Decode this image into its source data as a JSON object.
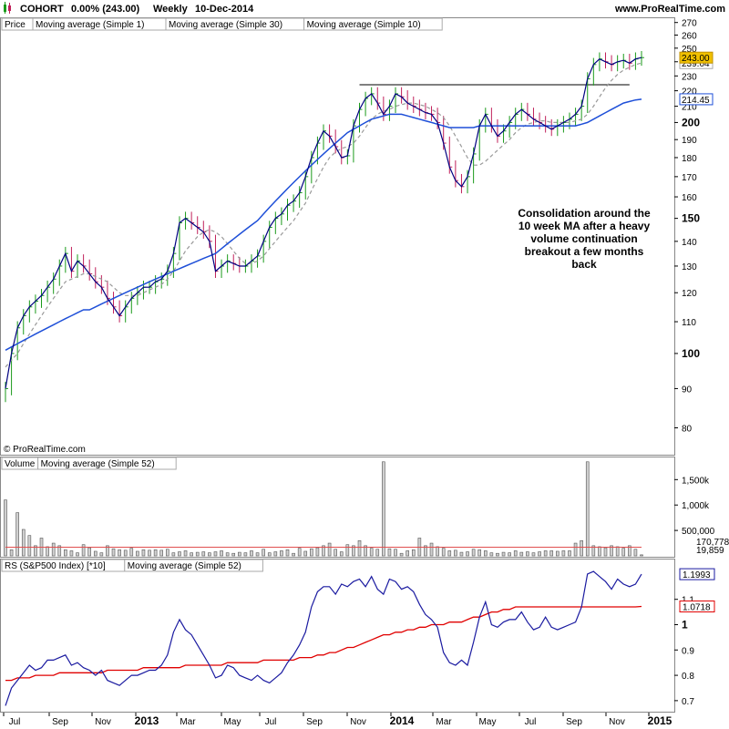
{
  "header": {
    "symbol": "COHORT",
    "change": "0.00% (243.00)",
    "period": "Weekly",
    "date": "10-Dec-2014",
    "site": "www.ProRealTime.com",
    "watermark": "© ProRealTime.com"
  },
  "legends": {
    "price": [
      {
        "text": "Price",
        "color": "#000000"
      },
      {
        "text": "Moving average (Simple 1)",
        "color": "#000080"
      },
      {
        "text": "Moving average (Simple 30)",
        "color": "#1e4fd8"
      },
      {
        "text": "Moving average (Simple 10)",
        "color": "#999999"
      }
    ],
    "volume": [
      {
        "text": "Volume",
        "color": "#888888"
      },
      {
        "text": "Moving average (Simple 52)",
        "color": "#e05050"
      }
    ],
    "rs": [
      {
        "text": "RS (S&P500 Index) [*10]",
        "color": "#000080"
      },
      {
        "text": "Moving average (Simple 52)",
        "color": "#e00000"
      }
    ]
  },
  "colors": {
    "up_bar": "#1a9a1a",
    "down_bar": "#c0205a",
    "ma1": "#000080",
    "ma30": "#1e4fd8",
    "ma10": "#999999",
    "vol_bar": "#888888",
    "vol_ma": "#e05050",
    "rs_line": "#1a1aa0",
    "rs_ma": "#e00000",
    "price_tag": "#f0c000"
  },
  "annotation": {
    "lines": [
      "Consolidation around the",
      "10 week MA after a heavy",
      "volume continuation",
      "breakout a few months",
      "back"
    ]
  },
  "chart_data": [
    {
      "type": "line",
      "panel": "price",
      "y_scale": "log",
      "ylim": [
        74,
        272
      ],
      "y_ticks": [
        80,
        90,
        100,
        110,
        120,
        130,
        140,
        150,
        160,
        170,
        180,
        190,
        200,
        210,
        220,
        230,
        240,
        250,
        260,
        270
      ],
      "y_ticks_bold": [
        100,
        150,
        200
      ],
      "x_ticks": [
        "Jul",
        "Sep",
        "Nov",
        "2013",
        "Mar",
        "May",
        "Jul",
        "Sep",
        "Nov",
        "2014",
        "Mar",
        "May",
        "Jul",
        "Sep",
        "Nov",
        "2015"
      ],
      "x_ticks_bold": [
        "2013",
        "2014",
        "2015"
      ],
      "series": [
        {
          "name": "Moving average (Simple 1)",
          "values": [
            90,
            100,
            108,
            112,
            115,
            117,
            119,
            122,
            125,
            130,
            135,
            128,
            132,
            130,
            127,
            124,
            122,
            118,
            115,
            112,
            115,
            118,
            120,
            122,
            122,
            124,
            125,
            128,
            135,
            148,
            150,
            148,
            146,
            144,
            140,
            128,
            130,
            132,
            131,
            130,
            130,
            132,
            134,
            140,
            146,
            150,
            152,
            156,
            158,
            162,
            170,
            180,
            188,
            195,
            192,
            186,
            180,
            181,
            198,
            208,
            215,
            218,
            212,
            205,
            210,
            218,
            216,
            212,
            210,
            208,
            206,
            205,
            200,
            188,
            175,
            168,
            165,
            170,
            182,
            198,
            205,
            198,
            192,
            195,
            200,
            205,
            208,
            205,
            202,
            200,
            198,
            196,
            198,
            200,
            202,
            205,
            210,
            228,
            238,
            242,
            240,
            238,
            240,
            241,
            239,
            242,
            243
          ]
        },
        {
          "name": "Moving average (Simple 30)",
          "values": [
            101,
            102,
            103,
            104,
            105,
            106,
            107,
            108,
            109,
            110,
            111,
            112,
            113,
            114,
            114,
            115,
            116,
            117,
            118,
            119,
            120,
            121,
            122,
            123,
            124,
            125,
            126,
            127,
            128,
            129,
            130,
            131,
            132,
            133,
            134,
            135,
            137,
            139,
            141,
            143,
            145,
            147,
            149,
            152,
            155,
            158,
            161,
            164,
            167,
            170,
            173,
            176,
            179,
            182,
            185,
            188,
            191,
            194,
            196,
            198,
            200,
            202,
            203,
            204,
            205,
            205,
            205,
            204,
            203,
            202,
            201,
            200,
            199,
            198,
            197,
            197,
            197,
            197,
            197,
            198,
            198,
            198,
            198,
            198,
            198,
            198,
            198,
            198,
            198,
            198,
            198,
            198,
            198,
            198,
            198,
            198,
            199,
            200,
            202,
            204,
            206,
            208,
            210,
            212,
            213,
            214,
            214.45
          ]
        },
        {
          "name": "Moving average (Simple 10)",
          "values": [
            96,
            98,
            100,
            103,
            106,
            109,
            112,
            115,
            118,
            121,
            124,
            125,
            126,
            127,
            127,
            126,
            125,
            124,
            122,
            120,
            119,
            119,
            119,
            120,
            121,
            122,
            123,
            125,
            128,
            132,
            136,
            139,
            142,
            144,
            145,
            144,
            142,
            139,
            136,
            133,
            131,
            131,
            132,
            134,
            137,
            140,
            143,
            146,
            149,
            153,
            157,
            163,
            169,
            175,
            180,
            183,
            185,
            186,
            188,
            192,
            197,
            202,
            205,
            207,
            208,
            210,
            211,
            212,
            212,
            211,
            210,
            208,
            206,
            203,
            198,
            192,
            186,
            180,
            176,
            176,
            178,
            181,
            184,
            187,
            190,
            194,
            197,
            199,
            200,
            201,
            201,
            200,
            200,
            200,
            200,
            201,
            202,
            205,
            210,
            216,
            222,
            227,
            231,
            234,
            236,
            238,
            239.04
          ]
        }
      ],
      "last_price": "243.00",
      "ma10_last": "239.04",
      "ma30_last": "214.45",
      "resistance_level": 224
    },
    {
      "type": "bar",
      "panel": "volume",
      "ylim": [
        0,
        1900000
      ],
      "y_tick_labels": [
        "1,500k",
        "1,000k",
        "500,000"
      ],
      "y_tick_values": [
        1500000,
        1000000,
        500000
      ],
      "values": [
        1100000,
        120000,
        850000,
        520000,
        400000,
        200000,
        350000,
        180000,
        250000,
        200000,
        120000,
        100000,
        60000,
        220000,
        160000,
        90000,
        60000,
        200000,
        140000,
        120000,
        110000,
        150000,
        90000,
        120000,
        110000,
        120000,
        110000,
        130000,
        60000,
        80000,
        100000,
        60000,
        70000,
        80000,
        60000,
        80000,
        100000,
        60000,
        50000,
        70000,
        60000,
        100000,
        60000,
        130000,
        60000,
        80000,
        100000,
        120000,
        50000,
        150000,
        90000,
        140000,
        160000,
        200000,
        250000,
        130000,
        80000,
        220000,
        200000,
        300000,
        200000,
        150000,
        130000,
        1850000,
        140000,
        130000,
        50000,
        100000,
        120000,
        350000,
        200000,
        250000,
        180000,
        150000,
        100000,
        110000,
        70000,
        80000,
        130000,
        120000,
        100000,
        60000,
        50000,
        70000,
        60000,
        100000,
        70000,
        80000,
        60000,
        80000,
        100000,
        100000,
        90000,
        100000,
        100000,
        250000,
        300000,
        1850000,
        200000,
        180000,
        160000,
        200000,
        180000,
        150000,
        200000,
        130000,
        19859
      ],
      "ma_values_last": "170,778",
      "volume_last": "19,859",
      "ma_level": 170778
    },
    {
      "type": "line",
      "panel": "rs",
      "ylim": [
        0.66,
        1.25
      ],
      "y_ticks": [
        0.7,
        0.8,
        0.9,
        1,
        1.1
      ],
      "y_tick_labels": [
        "0.7",
        "0.8",
        "0.9",
        "1",
        "1.1"
      ],
      "series": [
        {
          "name": "RS (S&P500 Index) [*10]",
          "values": [
            0.68,
            0.75,
            0.78,
            0.81,
            0.84,
            0.82,
            0.83,
            0.86,
            0.86,
            0.87,
            0.88,
            0.84,
            0.85,
            0.83,
            0.82,
            0.8,
            0.82,
            0.78,
            0.77,
            0.76,
            0.78,
            0.8,
            0.8,
            0.81,
            0.82,
            0.82,
            0.84,
            0.88,
            0.97,
            1.02,
            0.98,
            0.96,
            0.92,
            0.88,
            0.84,
            0.79,
            0.8,
            0.84,
            0.83,
            0.8,
            0.79,
            0.78,
            0.8,
            0.78,
            0.77,
            0.79,
            0.81,
            0.85,
            0.88,
            0.92,
            0.97,
            1.07,
            1.13,
            1.15,
            1.15,
            1.12,
            1.16,
            1.15,
            1.17,
            1.18,
            1.15,
            1.19,
            1.14,
            1.12,
            1.18,
            1.17,
            1.14,
            1.15,
            1.13,
            1.08,
            1.04,
            1.02,
            0.99,
            0.89,
            0.85,
            0.84,
            0.86,
            0.84,
            0.93,
            1.03,
            1.09,
            1.0,
            0.99,
            1.01,
            1.02,
            1.02,
            1.05,
            1.01,
            0.98,
            0.99,
            1.03,
            0.99,
            0.98,
            0.99,
            1.0,
            1.01,
            1.07,
            1.2,
            1.21,
            1.19,
            1.17,
            1.14,
            1.18,
            1.16,
            1.15,
            1.16,
            1.1993
          ]
        },
        {
          "name": "Moving average (Simple 52)",
          "values": [
            0.78,
            0.78,
            0.79,
            0.79,
            0.79,
            0.8,
            0.8,
            0.8,
            0.8,
            0.81,
            0.81,
            0.81,
            0.81,
            0.81,
            0.81,
            0.81,
            0.81,
            0.82,
            0.82,
            0.82,
            0.82,
            0.82,
            0.82,
            0.83,
            0.83,
            0.83,
            0.83,
            0.83,
            0.83,
            0.83,
            0.84,
            0.84,
            0.84,
            0.84,
            0.84,
            0.84,
            0.84,
            0.85,
            0.85,
            0.85,
            0.85,
            0.85,
            0.85,
            0.86,
            0.86,
            0.86,
            0.86,
            0.86,
            0.86,
            0.87,
            0.87,
            0.87,
            0.88,
            0.88,
            0.89,
            0.89,
            0.9,
            0.91,
            0.91,
            0.92,
            0.93,
            0.94,
            0.95,
            0.96,
            0.96,
            0.97,
            0.97,
            0.98,
            0.98,
            0.99,
            0.99,
            1.0,
            1.0,
            1.0,
            1.01,
            1.01,
            1.01,
            1.02,
            1.03,
            1.03,
            1.04,
            1.05,
            1.05,
            1.06,
            1.06,
            1.07,
            1.07,
            1.07,
            1.07,
            1.07,
            1.07,
            1.07,
            1.07,
            1.07,
            1.07,
            1.07,
            1.07,
            1.07,
            1.07,
            1.07,
            1.07,
            1.07,
            1.07,
            1.07,
            1.07,
            1.07,
            1.0718
          ]
        }
      ],
      "rs_last": "1.1993",
      "ma_last": "1.0718"
    }
  ]
}
